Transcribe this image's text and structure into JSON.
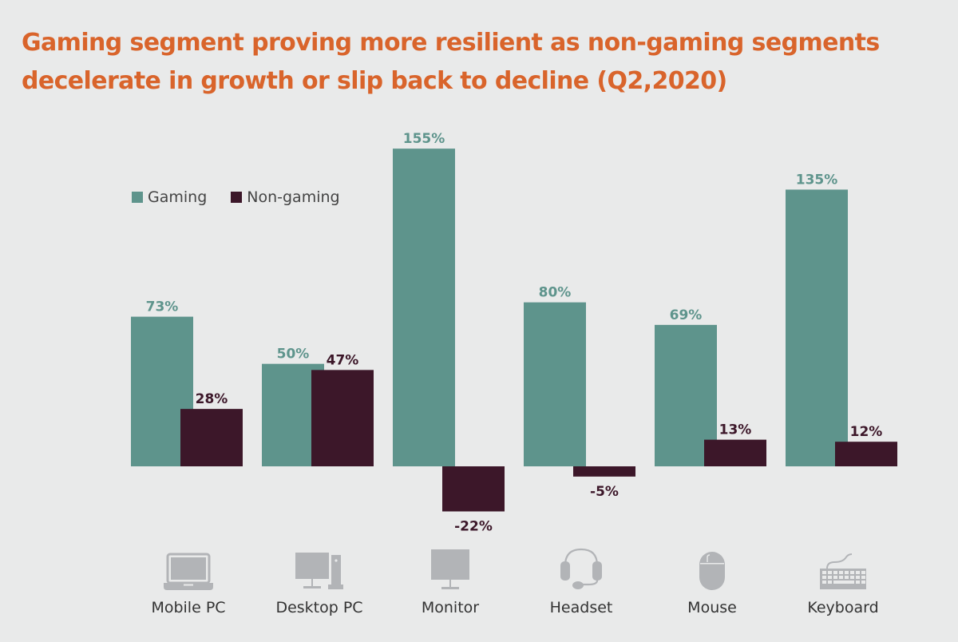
{
  "title": {
    "line1": "Gaming segment proving more resilient as non-gaming segments",
    "line2": "decelerate in growth or slip back to decline (Q2,2020)"
  },
  "colors": {
    "title": "#d9642b",
    "gaming": "#5e948c",
    "non_gaming": "#3c1729",
    "icon": "#b2b4b7",
    "background": "#e9eaea"
  },
  "legend": {
    "gaming": "Gaming",
    "non_gaming": "Non-gaming"
  },
  "categories": [
    {
      "label": "Mobile PC",
      "icon": "laptop-icon"
    },
    {
      "label": "Desktop PC",
      "icon": "desktop-icon"
    },
    {
      "label": "Monitor",
      "icon": "monitor-icon"
    },
    {
      "label": "Headset",
      "icon": "headset-icon"
    },
    {
      "label": "Mouse",
      "icon": "mouse-icon"
    },
    {
      "label": "Keyboard",
      "icon": "keyboard-icon"
    }
  ],
  "chart_data": {
    "type": "bar",
    "title": "Gaming segment proving more resilient as non-gaming segments decelerate in growth or slip back to decline (Q2,2020)",
    "xlabel": "",
    "ylabel": "",
    "categories": [
      "Mobile PC",
      "Desktop PC",
      "Monitor",
      "Headset",
      "Mouse",
      "Keyboard"
    ],
    "series": [
      {
        "name": "Gaming",
        "values": [
          73,
          50,
          155,
          80,
          69,
          135
        ],
        "labels": [
          "73%",
          "50%",
          "155%",
          "80%",
          "69%",
          "135%"
        ]
      },
      {
        "name": "Non-gaming",
        "values": [
          28,
          47,
          -22,
          -5,
          13,
          12
        ],
        "labels": [
          "28%",
          "47%",
          "-22%",
          "-5%",
          "13%",
          "12%"
        ]
      }
    ],
    "ylim": [
      -25,
      160
    ],
    "unit": "%",
    "grid": false,
    "axes_visible": false,
    "legend_position": "top-left"
  }
}
